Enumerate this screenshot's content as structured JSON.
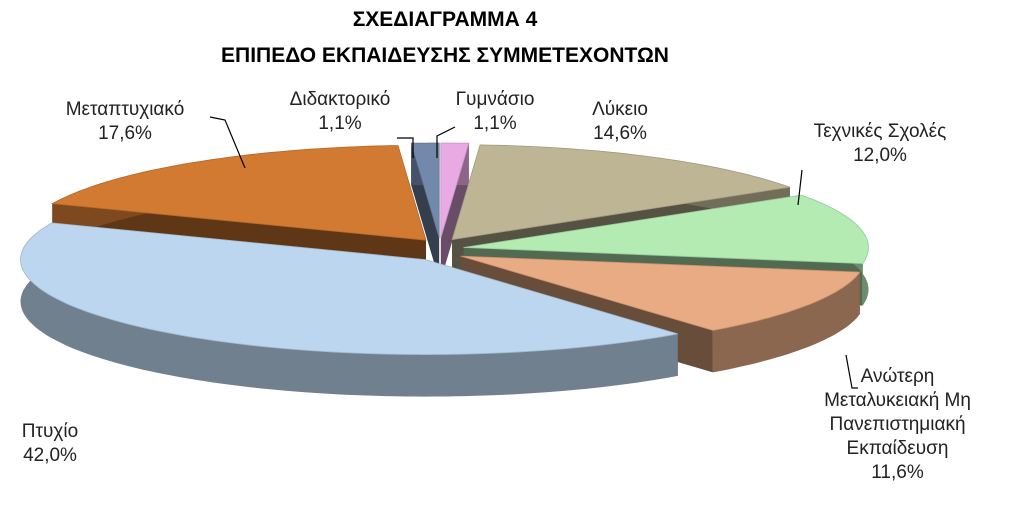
{
  "chart_data": {
    "type": "pie3d",
    "title": "ΣΧΕΔΙΑΓΡΑΜΜΑ 4",
    "subtitle": "ΕΠΙΠΕΔΟ ΕΚΠΑΙΔΕΥΣΗΣ ΣΥΜΜΕΤΕΧΟΝΤΩΝ",
    "categories": [
      "Γυμνάσιο",
      "Λύκειο",
      "Τεχνικές Σχολές",
      "Ανώτερη Μεταλυκειακή Μη Πανεπιστημιακή Εκπαίδευση",
      "Πτυχίο",
      "Μεταπτυχιακό",
      "Διδακτορικό"
    ],
    "values": [
      1.1,
      14.6,
      12.0,
      11.6,
      42.0,
      17.6,
      1.1
    ],
    "value_labels": [
      "1,1%",
      "14,6%",
      "12,0%",
      "11,6%",
      "42,0%",
      "17,6%",
      "1,1%"
    ],
    "colors": [
      "#e9a9e3",
      "#bdb594",
      "#b3ebb3",
      "#e9ab83",
      "#bbd6ee",
      "#d27a32",
      "#7389ab"
    ]
  }
}
